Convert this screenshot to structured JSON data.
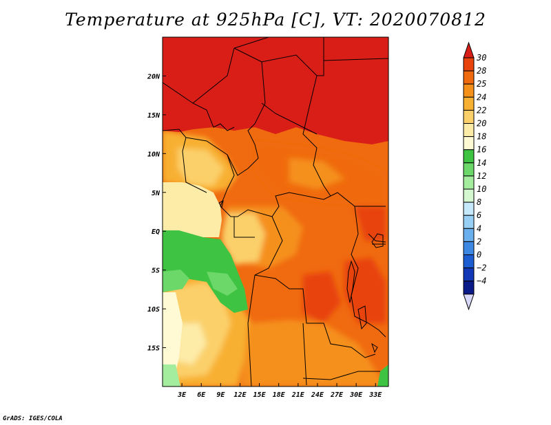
{
  "title": "Temperature at 925hPa [C], VT: 2020070812",
  "footer": "GrADS: IGES/COLA",
  "map": {
    "region": "Central Africa",
    "lon_range": [
      0,
      35
    ],
    "lat_range": [
      -20,
      25
    ],
    "lon_ticks": [
      {
        "value": 3,
        "label": "3E"
      },
      {
        "value": 6,
        "label": "6E"
      },
      {
        "value": 9,
        "label": "9E"
      },
      {
        "value": 12,
        "label": "12E"
      },
      {
        "value": 15,
        "label": "15E"
      },
      {
        "value": 18,
        "label": "18E"
      },
      {
        "value": 21,
        "label": "21E"
      },
      {
        "value": 24,
        "label": "24E"
      },
      {
        "value": 27,
        "label": "27E"
      },
      {
        "value": 30,
        "label": "30E"
      },
      {
        "value": 33,
        "label": "33E"
      }
    ],
    "lat_ticks": [
      {
        "value": 20,
        "label": "20N"
      },
      {
        "value": 15,
        "label": "15N"
      },
      {
        "value": 10,
        "label": "10N"
      },
      {
        "value": 5,
        "label": "5N"
      },
      {
        "value": 0,
        "label": "EQ"
      },
      {
        "value": -5,
        "label": "5S"
      },
      {
        "value": -10,
        "label": "10S"
      },
      {
        "value": -15,
        "label": "15S"
      }
    ]
  },
  "colorbar": {
    "labels": [
      "30",
      "28",
      "25",
      "24",
      "22",
      "20",
      "18",
      "16",
      "14",
      "12",
      "10",
      "8",
      "6",
      "4",
      "2",
      "0",
      "−2",
      "−4"
    ],
    "colors_top_to_bottom": [
      "#d91e18",
      "#e8430c",
      "#f06a10",
      "#f5901a",
      "#f8b032",
      "#fbd06a",
      "#fdeba8",
      "#fff9d4",
      "#3fc342",
      "#6cd86a",
      "#a4ec9e",
      "#d4f8d0",
      "#c6e8fb",
      "#98d0f5",
      "#6ab0ee",
      "#3d88e2",
      "#1c5ed2",
      "#1238b8",
      "#0a1a88",
      "#d8d8f8"
    ]
  },
  "legend_colors": {
    "c30": "#d91e18",
    "c28": "#e8430c",
    "c25": "#f06a10",
    "c24": "#f5901a",
    "c22": "#f8b032",
    "c20": "#fbd06a",
    "c18": "#fdeba8",
    "c16": "#fff9d4",
    "green": "#3fc342",
    "lightgreen": "#a4ec9e"
  }
}
